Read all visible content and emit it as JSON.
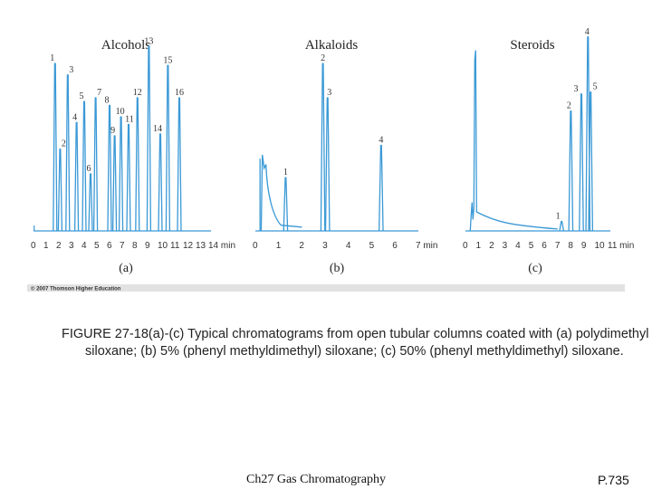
{
  "figure": {
    "copyright": "© 2007 Thomson Higher Education"
  },
  "chart_data": [
    {
      "type": "line",
      "id": "a",
      "title": "Alcohols",
      "sublabel": "(a)",
      "line_color": "#3b99d6",
      "xlim": [
        0,
        14
      ],
      "ylim": [
        0,
        100
      ],
      "xticks": [
        "0",
        "1",
        "2",
        "3",
        "4",
        "5",
        "6",
        "7",
        "8",
        "9",
        "10",
        "11",
        "12",
        "13",
        "14 min"
      ],
      "peaks": [
        {
          "label": "1",
          "x": 1.7,
          "height": 88
        },
        {
          "label": "2",
          "x": 2.1,
          "height": 43
        },
        {
          "label": "3",
          "x": 2.7,
          "height": 82
        },
        {
          "label": "4",
          "x": 3.4,
          "height": 57
        },
        {
          "label": "5",
          "x": 4.0,
          "height": 68
        },
        {
          "label": "6",
          "x": 4.5,
          "height": 30
        },
        {
          "label": "7",
          "x": 4.9,
          "height": 70
        },
        {
          "label": "8",
          "x": 6.0,
          "height": 66
        },
        {
          "label": "9",
          "x": 6.4,
          "height": 50
        },
        {
          "label": "10",
          "x": 6.9,
          "height": 60
        },
        {
          "label": "11",
          "x": 7.5,
          "height": 56
        },
        {
          "label": "12",
          "x": 8.2,
          "height": 70
        },
        {
          "label": "13",
          "x": 9.1,
          "height": 97
        },
        {
          "label": "14",
          "x": 10.0,
          "height": 51
        },
        {
          "label": "15",
          "x": 10.6,
          "height": 87
        },
        {
          "label": "16",
          "x": 11.5,
          "height": 70
        }
      ]
    },
    {
      "type": "line",
      "id": "b",
      "title": "Alkaloids",
      "sublabel": "(b)",
      "line_color": "#3b99d6",
      "xlim": [
        0,
        7
      ],
      "ylim": [
        0,
        100
      ],
      "xticks": [
        "0",
        "1",
        "2",
        "3",
        "4",
        "5",
        "6",
        "7 min"
      ],
      "peaks": [
        {
          "label": "1",
          "x": 1.3,
          "height": 28
        },
        {
          "label": "2",
          "x": 2.9,
          "height": 88
        },
        {
          "label": "3",
          "x": 3.1,
          "height": 70
        },
        {
          "label": "4",
          "x": 5.4,
          "height": 45
        }
      ]
    },
    {
      "type": "line",
      "id": "c",
      "title": "Steroids",
      "sublabel": "(c)",
      "line_color": "#3b99d6",
      "xlim": [
        0,
        11
      ],
      "ylim": [
        0,
        100
      ],
      "xticks": [
        "0",
        "1",
        "2",
        "3",
        "4",
        "5",
        "6",
        "7",
        "8",
        "9",
        "10",
        "11 min"
      ],
      "peaks": [
        {
          "label": "1",
          "x": 7.3,
          "height": 5
        },
        {
          "label": "2",
          "x": 8.0,
          "height": 63
        },
        {
          "label": "3",
          "x": 8.8,
          "height": 72
        },
        {
          "label": "4",
          "x": 9.3,
          "height": 102
        },
        {
          "label": "5",
          "x": 9.5,
          "height": 73
        }
      ]
    }
  ],
  "caption": "FIGURE 27-18(a)-(c)  Typical chromatograms from open tubular columns coated with (a) polydimethyl siloxane; (b) 5% (phenyl methyldimethyl) siloxane; (c) 50% (phenyl methyldimethyl) siloxane.",
  "footer": {
    "chapter": "Ch27 Gas Chromatography",
    "page": "P.735"
  }
}
